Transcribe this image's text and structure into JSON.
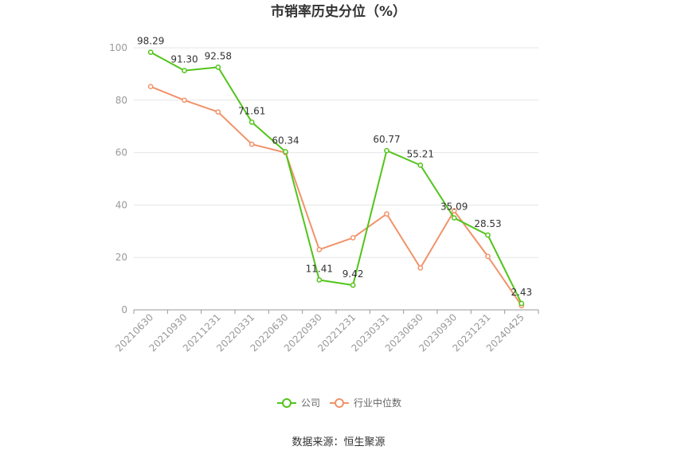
{
  "chart_data": {
    "type": "line",
    "title": "市销率历史分位（%）",
    "categories": [
      "20210630",
      "20210930",
      "20211231",
      "20220331",
      "20220630",
      "20220930",
      "20221231",
      "20230331",
      "20230630",
      "20230930",
      "20231231",
      "20240425"
    ],
    "yticks": [
      "0",
      "20",
      "40",
      "60",
      "80",
      "100"
    ],
    "ylim": [
      0,
      100
    ],
    "grid": true,
    "legend_position": "bottom-center",
    "series": [
      {
        "name": "公司",
        "color": "#52c41a",
        "values": [
          98.29,
          91.3,
          92.58,
          71.61,
          60.34,
          11.41,
          9.42,
          60.77,
          55.21,
          35.09,
          28.53,
          2.43
        ],
        "labels": [
          "98.29",
          "91.30",
          "92.58",
          "71.61",
          "60.34",
          "11.41",
          "9.42",
          "60.77",
          "55.21",
          "35.09",
          "28.53",
          "2.43"
        ]
      },
      {
        "name": "行业中位数",
        "color": "#f0936a",
        "values": [
          85.2,
          80.0,
          75.5,
          63.2,
          60.0,
          23.0,
          27.5,
          36.6,
          16.0,
          37.8,
          20.4,
          1.6
        ]
      }
    ]
  },
  "source": "数据来源：恒生聚源"
}
